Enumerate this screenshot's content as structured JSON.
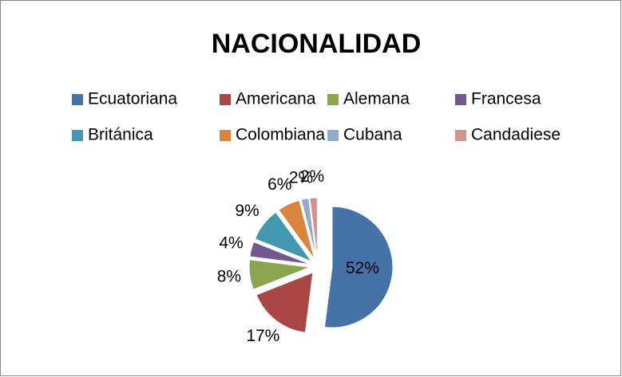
{
  "chart_data": {
    "type": "pie",
    "title": "NACIONALIDAD",
    "categories": [
      "Ecuatoriana",
      "Americana",
      "Alemana",
      "Francesa",
      "Británica",
      "Colombiana",
      "Cubana",
      "Candadiese"
    ],
    "values": [
      52,
      17,
      8,
      4,
      9,
      6,
      2,
      2
    ],
    "value_labels": [
      "52%",
      "17%",
      "8%",
      "4%",
      "9%",
      "6%",
      "2%",
      "2%"
    ],
    "colors": [
      "#4572a7",
      "#aa4643",
      "#89a54e",
      "#71588f",
      "#4198af",
      "#db843d",
      "#93a9cf",
      "#d19392"
    ],
    "legend": "top"
  }
}
